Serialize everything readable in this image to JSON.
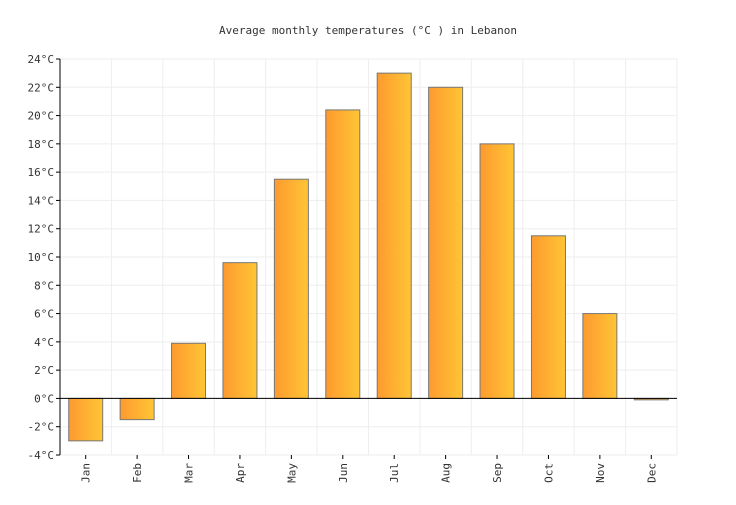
{
  "chart_data": {
    "type": "bar",
    "title": "Average monthly temperatures (°C ) in Lebanon",
    "xlabel": "",
    "ylabel": "",
    "categories": [
      "Jan",
      "Feb",
      "Mar",
      "Apr",
      "May",
      "Jun",
      "Jul",
      "Aug",
      "Sep",
      "Oct",
      "Nov",
      "Dec"
    ],
    "values": [
      -3.0,
      -1.5,
      3.9,
      9.6,
      15.5,
      20.4,
      23.0,
      22.0,
      18.0,
      11.5,
      6.0,
      -0.1
    ],
    "ylim": [
      -4,
      24
    ],
    "yticks": [
      -4,
      -2,
      0,
      2,
      4,
      6,
      8,
      10,
      12,
      14,
      16,
      18,
      20,
      22,
      24
    ],
    "y_unit": "°C",
    "grid": true,
    "legend": "none",
    "colors": {
      "bar_gradient_start": "#fd9a2f",
      "bar_gradient_end": "#ffc535",
      "bar_stroke": "#777777",
      "grid": "#eeeeee",
      "axis": "#000000"
    }
  }
}
